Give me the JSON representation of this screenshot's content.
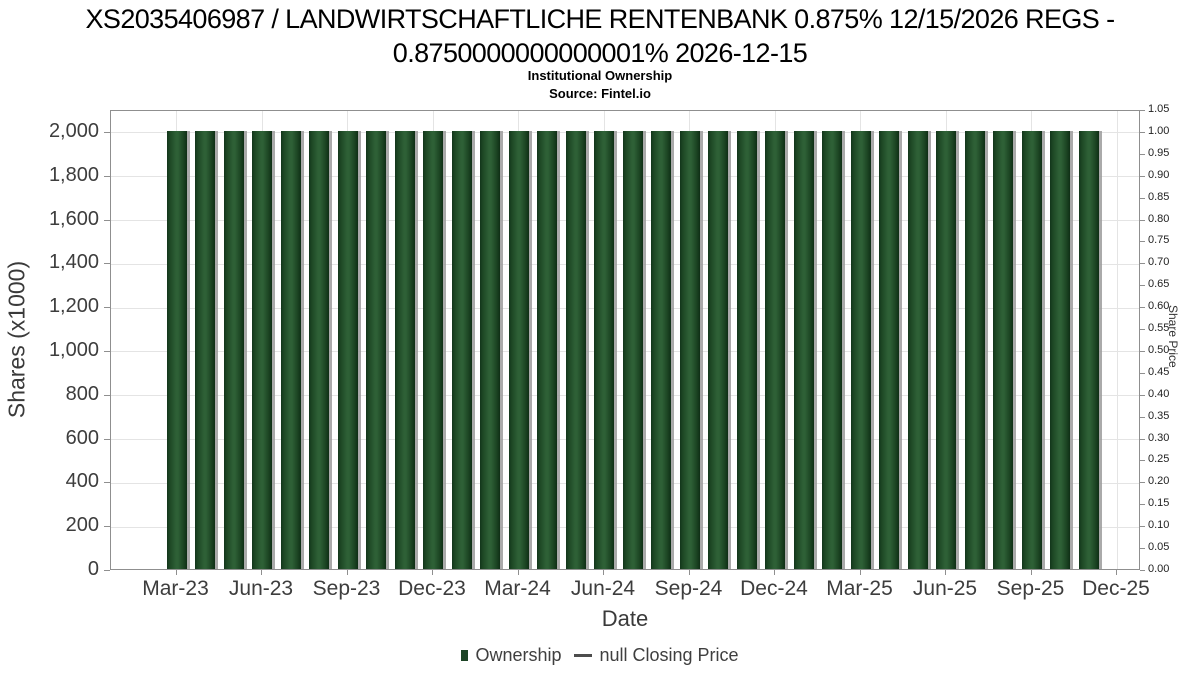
{
  "header": {
    "title_line1": "XS2035406987 / LANDWIRTSCHAFTLICHE RENTENBANK 0.875% 12/15/2026 REGS -",
    "title_line2": "0.8750000000000001% 2026-12-15",
    "subtitle": "Institutional Ownership",
    "source": "Source: Fintel.io"
  },
  "chart_data": {
    "type": "bar",
    "title": "XS2035406987 / LANDWIRTSCHAFTLICHE RENTENBANK 0.875% 12/15/2026 REGS - 0.8750000000000001% 2026-12-15",
    "subtitle": "Institutional Ownership",
    "source": "Source: Fintel.io",
    "xlabel": "Date",
    "ylabel_left": "Shares (x1000)",
    "ylabel_right": "Share Price",
    "grid": true,
    "legend_position": "bottom",
    "bar_color": "#2e6036",
    "categories": [
      "Mar-23",
      "Apr-23",
      "May-23",
      "Jun-23",
      "Jul-23",
      "Aug-23",
      "Sep-23",
      "Oct-23",
      "Nov-23",
      "Dec-23",
      "Jan-24",
      "Feb-24",
      "Mar-24",
      "Apr-24",
      "May-24",
      "Jun-24",
      "Jul-24",
      "Aug-24",
      "Sep-24",
      "Oct-24",
      "Nov-24",
      "Dec-24",
      "Jan-25",
      "Feb-25",
      "Mar-25",
      "Apr-25",
      "May-25",
      "Jun-25",
      "Jul-25",
      "Aug-25",
      "Sep-25",
      "Oct-25",
      "Nov-25"
    ],
    "series": [
      {
        "name": "Ownership",
        "values": [
          2000,
          2000,
          2000,
          2000,
          2000,
          2000,
          2000,
          2000,
          2000,
          2000,
          2000,
          2000,
          2000,
          2000,
          2000,
          2000,
          2000,
          2000,
          2000,
          2000,
          2000,
          2000,
          2000,
          2000,
          2000,
          2000,
          2000,
          2000,
          2000,
          2000,
          2000,
          2000,
          2000
        ]
      },
      {
        "name": "null Closing Price",
        "values": []
      }
    ],
    "x_ticks": [
      {
        "label": "Mar-23",
        "month_index": 0
      },
      {
        "label": "Jun-23",
        "month_index": 3
      },
      {
        "label": "Sep-23",
        "month_index": 6
      },
      {
        "label": "Dec-23",
        "month_index": 9
      },
      {
        "label": "Mar-24",
        "month_index": 12
      },
      {
        "label": "Jun-24",
        "month_index": 15
      },
      {
        "label": "Sep-24",
        "month_index": 18
      },
      {
        "label": "Dec-24",
        "month_index": 21
      },
      {
        "label": "Mar-25",
        "month_index": 24
      },
      {
        "label": "Jun-25",
        "month_index": 27
      },
      {
        "label": "Sep-25",
        "month_index": 30
      },
      {
        "label": "Dec-25",
        "month_index": 33
      }
    ],
    "left_axis": {
      "max": 2100,
      "tick_values": [
        0,
        200,
        400,
        600,
        800,
        1000,
        1200,
        1400,
        1600,
        1800,
        2000
      ],
      "tick_labels": [
        "0",
        "200",
        "400",
        "600",
        "800",
        "1,000",
        "1,200",
        "1,400",
        "1,600",
        "1,800",
        "2,000"
      ]
    },
    "right_axis": {
      "max": 1.05,
      "tick_values": [
        0,
        0.05,
        0.1,
        0.15,
        0.2,
        0.25,
        0.3,
        0.35,
        0.4,
        0.45,
        0.5,
        0.55,
        0.6,
        0.65,
        0.7,
        0.75,
        0.8,
        0.85,
        0.9,
        0.95,
        1.0,
        1.05
      ],
      "tick_labels": [
        "0.00",
        "0.05",
        "0.10",
        "0.15",
        "0.20",
        "0.25",
        "0.30",
        "0.35",
        "0.40",
        "0.45",
        "0.50",
        "0.55",
        "0.60",
        "0.65",
        "0.70",
        "0.75",
        "0.80",
        "0.85",
        "0.90",
        "0.95",
        "1.00",
        "1.05"
      ]
    },
    "legend": [
      {
        "label": "Ownership",
        "marker": "square",
        "color": "#1d4426"
      },
      {
        "label": "null Closing Price",
        "marker": "line",
        "color": "#4d4d4d"
      }
    ]
  }
}
